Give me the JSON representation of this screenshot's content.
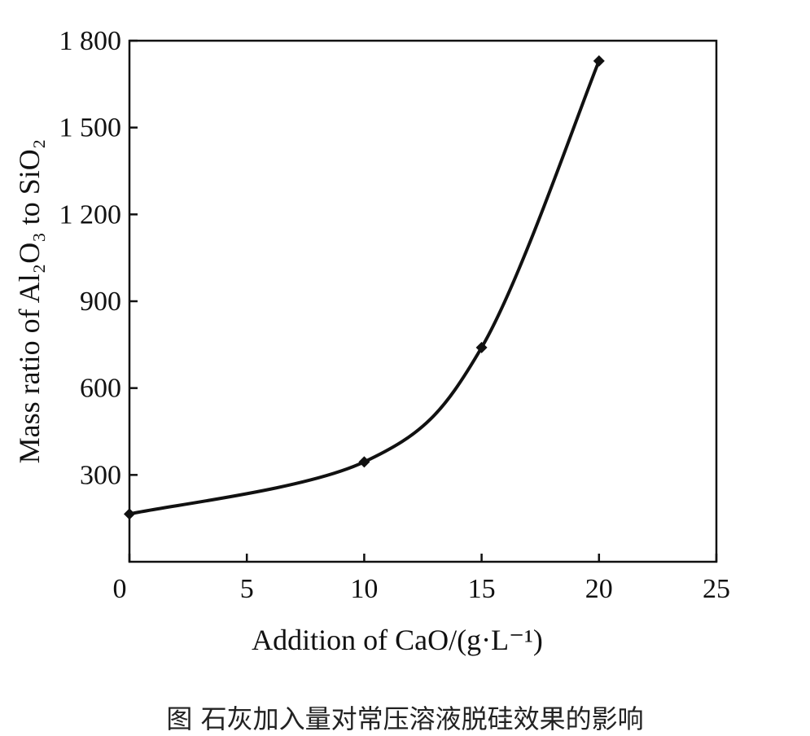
{
  "chart_data": {
    "type": "line",
    "xlabel": "Addition of CaO/(g·L⁻¹)",
    "ylabel": "Mass ratio of Al₂O₃ to SiO₂",
    "xlim": [
      0,
      25
    ],
    "ylim": [
      0,
      1800
    ],
    "xticks": [
      0,
      5,
      10,
      15,
      20,
      25
    ],
    "yticks": [
      300,
      600,
      900,
      1200,
      1500,
      1800
    ],
    "xtick_labels": [
      "0",
      "5",
      "10",
      "15",
      "20",
      "25"
    ],
    "ytick_labels": [
      "300",
      "600",
      "900",
      "1 200",
      "1 500",
      "1 800"
    ],
    "x": [
      0,
      10,
      15,
      20
    ],
    "y": [
      165,
      345,
      740,
      1730
    ],
    "grid": false,
    "marker": "diamond",
    "line_color": "#111111"
  },
  "caption": "图    石灰加入量对常压溶液脱硅效果的影响"
}
